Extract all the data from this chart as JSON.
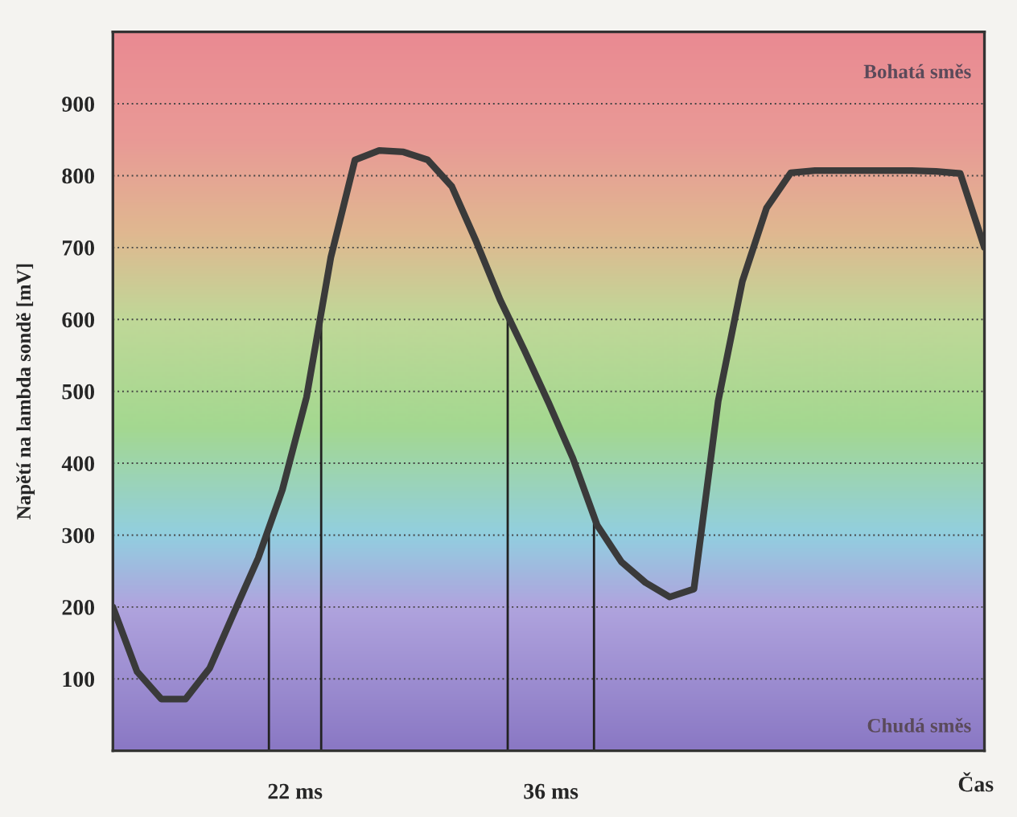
{
  "chart_data": {
    "type": "line",
    "ylabel": "Napětí na lambda sondě [mV]",
    "xlabel": "Čas",
    "categories": [
      null,
      null,
      null,
      null,
      null,
      null,
      null,
      null,
      null,
      null,
      null,
      null,
      null,
      null,
      null,
      null,
      null,
      null,
      null,
      null,
      null,
      null,
      null,
      null,
      null,
      null,
      null,
      null,
      null,
      null,
      null,
      null,
      null,
      null,
      null,
      null,
      null
    ],
    "series": [
      {
        "color": "#3a3a3a",
        "values": [
          200,
          110,
          72,
          72,
          115,
          192,
          268,
          363,
          492,
          686,
          822,
          835,
          833,
          822,
          785,
          709,
          627,
          557,
          484,
          407,
          314,
          263,
          234,
          214,
          225,
          486,
          653,
          755,
          804,
          807,
          807,
          807,
          807,
          807,
          806,
          803,
          700
        ]
      }
    ],
    "ylim": [
      0,
      1000
    ],
    "yticks": [
      100,
      200,
      300,
      400,
      500,
      600,
      700,
      800,
      900
    ],
    "annotations": [
      "22 ms",
      "36 ms",
      "Bohatá směs",
      "Chudá směs"
    ],
    "grid": "y",
    "tick_labels": "y",
    "line_style": "solid",
    "marker": "none"
  }
}
